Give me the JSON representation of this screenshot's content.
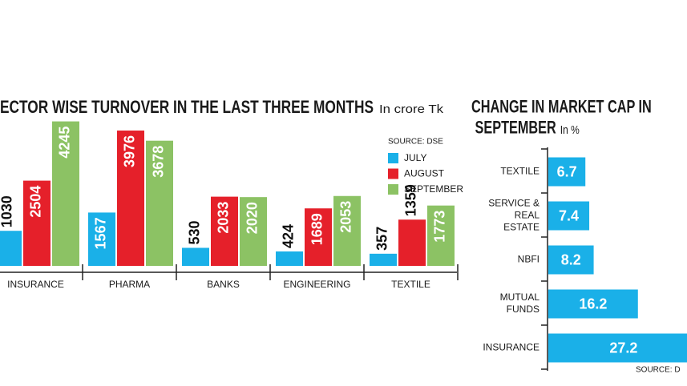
{
  "chart_data": [
    {
      "type": "bar",
      "title": "ECTOR WISE TURNOVER IN THE LAST THREE MONTHS",
      "subtitle": "In crore Tk",
      "source": "SOURCE: DSE",
      "categories": [
        "INSURANCE",
        "PHARMA",
        "BANKS",
        "ENGINEERING",
        "TEXTILE"
      ],
      "series": [
        {
          "name": "JULY",
          "color": "#1ab0e8",
          "values": [
            1030,
            1567,
            530,
            424,
            357
          ]
        },
        {
          "name": "AUGUST",
          "color": "#e5202a",
          "values": [
            2504,
            3976,
            2033,
            1689,
            1359
          ]
        },
        {
          "name": "SEPTEMBER",
          "color": "#8cc264",
          "values": [
            4245,
            3678,
            2020,
            2053,
            1773
          ]
        }
      ],
      "legend": "upper right"
    },
    {
      "type": "barh",
      "title": "CHANGE IN MARKET CAP IN SEPTEMBER",
      "subtitle": "In %",
      "source": "SOURCE: D",
      "categories": [
        "TEXTILE",
        "SERVICE & REAL ESTATE",
        "NBFI",
        "MUTUAL FUNDS",
        "INSURANCE"
      ],
      "values": [
        6.7,
        7.4,
        8.2,
        16.2,
        27.2
      ],
      "color": "#1ab0e8"
    }
  ]
}
